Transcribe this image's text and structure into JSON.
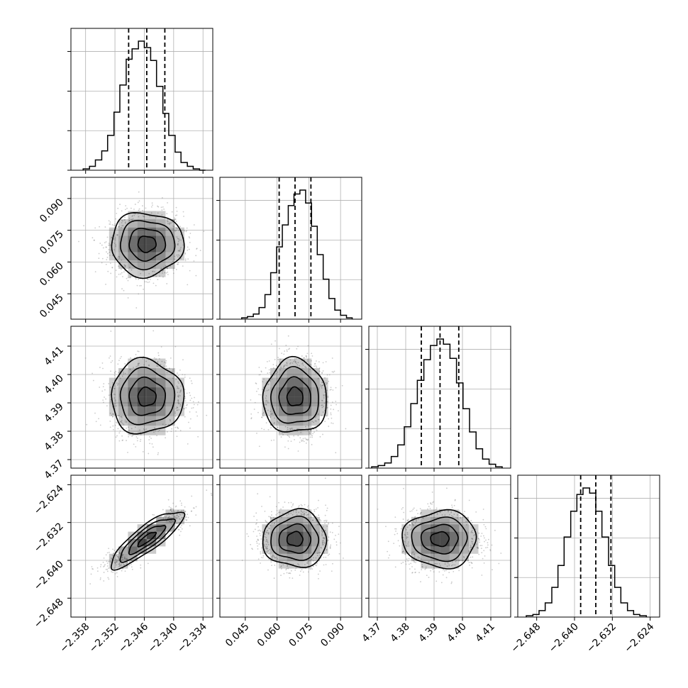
{
  "chart_data": {
    "type": "corner",
    "title": "",
    "grid": true,
    "quantiles": [
      0.16,
      0.5,
      0.84
    ],
    "parameters": [
      {
        "index": 0,
        "range": [
          -2.361,
          -2.332
        ],
        "ticks": [
          -2.358,
          -2.352,
          -2.346,
          -2.34,
          -2.334
        ],
        "tick_labels": [
          "−2.358",
          "−2.352",
          "−2.346",
          "−2.340",
          "−2.334"
        ],
        "mean": -2.3455,
        "sigma": 0.0037,
        "quantile_values": [
          -2.3492,
          -2.3455,
          -2.3418
        ],
        "histogram": {
          "bin_edges": [
            -2.3585,
            -2.3572,
            -2.356,
            -2.3547,
            -2.3535,
            -2.3522,
            -2.351,
            -2.3497,
            -2.3485,
            -2.3472,
            -2.346,
            -2.3447,
            -2.3435,
            -2.3422,
            -2.341,
            -2.3397,
            -2.3385,
            -2.3372,
            -2.336,
            -2.3347,
            -2.3335
          ],
          "counts": [
            1,
            3,
            8,
            15,
            27,
            45,
            66,
            86,
            94,
            100,
            95,
            85,
            65,
            44,
            27,
            14,
            6,
            3,
            1,
            0
          ]
        }
      },
      {
        "index": 1,
        "range": [
          0.033,
          0.1
        ],
        "ticks": [
          0.045,
          0.06,
          0.075,
          0.09
        ],
        "tick_labels": [
          "0.045",
          "0.060",
          "0.075",
          "0.090"
        ],
        "mean": 0.0685,
        "sigma": 0.0075,
        "quantile_values": [
          0.061,
          0.0685,
          0.076
        ],
        "histogram": {
          "bin_edges": [
            0.0433,
            0.046,
            0.0488,
            0.0515,
            0.0543,
            0.057,
            0.0598,
            0.0625,
            0.0653,
            0.068,
            0.0708,
            0.0735,
            0.0763,
            0.079,
            0.0818,
            0.0845,
            0.0873,
            0.09,
            0.0928,
            0.0955
          ],
          "counts": [
            1,
            2,
            4,
            9,
            19,
            36,
            56,
            73,
            88,
            97,
            100,
            90,
            72,
            50,
            31,
            16,
            7,
            3,
            1
          ]
        }
      },
      {
        "index": 2,
        "range": [
          4.367,
          4.417
        ],
        "ticks": [
          4.37,
          4.38,
          4.39,
          4.4,
          4.41
        ],
        "tick_labels": [
          "4.37",
          "4.38",
          "4.39",
          "4.40",
          "4.41"
        ],
        "mean": 4.3921,
        "sigma": 0.0065,
        "quantile_values": [
          4.3855,
          4.3921,
          4.3987
        ],
        "histogram": {
          "bin_edges": [
            4.368,
            4.3703,
            4.3726,
            4.3749,
            4.3772,
            4.3795,
            4.3818,
            4.3841,
            4.3864,
            4.3887,
            4.391,
            4.3933,
            4.3956,
            4.3979,
            4.4002,
            4.4025,
            4.4048,
            4.4071,
            4.4094,
            4.4117,
            4.414
          ],
          "counts": [
            1,
            2,
            4,
            9,
            18,
            32,
            50,
            68,
            84,
            95,
            100,
            96,
            85,
            66,
            46,
            28,
            15,
            7,
            3,
            1
          ]
        }
      },
      {
        "index": 3,
        "range": [
          -2.652,
          -2.622
        ],
        "ticks": [
          -2.648,
          -2.64,
          -2.632,
          -2.624
        ],
        "tick_labels": [
          "−2.648",
          "−2.640",
          "−2.632",
          "−2.624"
        ],
        "mean": -2.6355,
        "sigma": 0.003,
        "quantile_values": [
          -2.6387,
          -2.6355,
          -2.6323
        ],
        "histogram": {
          "bin_edges": [
            -2.6502,
            -2.6488,
            -2.6475,
            -2.6462,
            -2.6448,
            -2.6435,
            -2.6422,
            -2.6408,
            -2.6395,
            -2.6382,
            -2.6368,
            -2.6355,
            -2.6342,
            -2.6328,
            -2.6315,
            -2.6302,
            -2.6288,
            -2.6275,
            -2.6262,
            -2.6248
          ],
          "counts": [
            1,
            2,
            5,
            11,
            23,
            40,
            62,
            82,
            95,
            100,
            96,
            82,
            62,
            40,
            23,
            11,
            5,
            2,
            1
          ]
        }
      }
    ],
    "correlations": [
      {
        "pair": [
          1,
          0
        ],
        "rho": 0.0
      },
      {
        "pair": [
          2,
          0
        ],
        "rho": 0.0
      },
      {
        "pair": [
          2,
          1
        ],
        "rho": 0.0
      },
      {
        "pair": [
          3,
          0
        ],
        "rho": 0.85
      },
      {
        "pair": [
          3,
          1
        ],
        "rho": 0.0
      },
      {
        "pair": [
          3,
          2
        ],
        "rho": 0.0
      }
    ],
    "contour_levels_sigma": [
      0.5,
      1.0,
      1.5,
      2.0
    ],
    "colors": {
      "ink": "#000000",
      "grid": "#b0b0b0",
      "density": "#000000",
      "scatter": "#8c8c8c"
    }
  }
}
